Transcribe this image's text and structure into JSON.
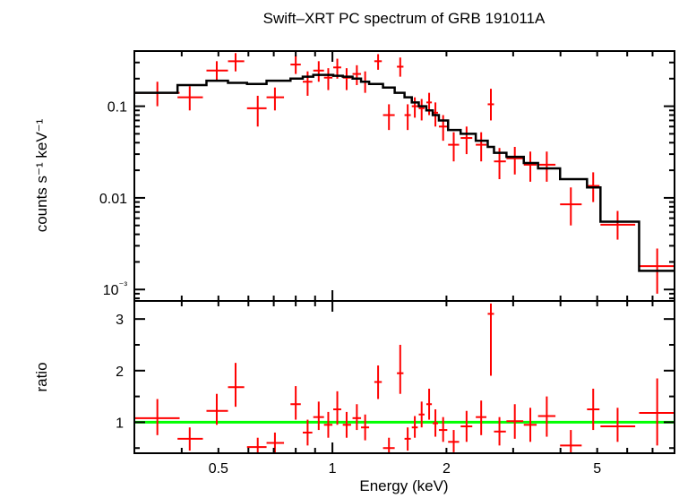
{
  "chart_data": [
    {
      "type": "scatter",
      "panel": "spectrum",
      "title": "Swift–XRT PC spectrum of GRB 191011A",
      "ylabel": "counts s⁻¹ keV⁻¹",
      "yscale": "log",
      "xscale": "log",
      "xlim": [
        0.3,
        8.0
      ],
      "ylim": [
        0.00075,
        0.4
      ],
      "yticks": [
        {
          "value": 0.1,
          "label": "0.1"
        },
        {
          "value": 0.01,
          "label": "0.01"
        },
        {
          "value": 0.001,
          "label": "10⁻³"
        }
      ],
      "colors": {
        "data": "#ff0000",
        "model": "#000000"
      },
      "series": [
        {
          "role": "data",
          "points": [
            {
              "x": 0.345,
              "xlo": 0.3,
              "xhi": 0.395,
              "y": 0.14,
              "ylo": 0.1,
              "yhi": 0.185
            },
            {
              "x": 0.42,
              "xlo": 0.39,
              "xhi": 0.455,
              "y": 0.125,
              "ylo": 0.09,
              "yhi": 0.165
            },
            {
              "x": 0.495,
              "xlo": 0.465,
              "xhi": 0.53,
              "y": 0.245,
              "ylo": 0.19,
              "yhi": 0.31
            },
            {
              "x": 0.555,
              "xlo": 0.53,
              "xhi": 0.585,
              "y": 0.31,
              "ylo": 0.24,
              "yhi": 0.38
            },
            {
              "x": 0.635,
              "xlo": 0.595,
              "xhi": 0.67,
              "y": 0.095,
              "ylo": 0.06,
              "yhi": 0.13
            },
            {
              "x": 0.705,
              "xlo": 0.67,
              "xhi": 0.745,
              "y": 0.125,
              "ylo": 0.09,
              "yhi": 0.16
            },
            {
              "x": 0.8,
              "xlo": 0.775,
              "xhi": 0.825,
              "y": 0.285,
              "ylo": 0.225,
              "yhi": 0.36
            },
            {
              "x": 0.86,
              "xlo": 0.835,
              "xhi": 0.885,
              "y": 0.185,
              "ylo": 0.13,
              "yhi": 0.24
            },
            {
              "x": 0.92,
              "xlo": 0.89,
              "xhi": 0.95,
              "y": 0.245,
              "ylo": 0.185,
              "yhi": 0.31
            },
            {
              "x": 0.975,
              "xlo": 0.95,
              "xhi": 1.0,
              "y": 0.205,
              "ylo": 0.15,
              "yhi": 0.26
            },
            {
              "x": 1.03,
              "xlo": 1.005,
              "xhi": 1.055,
              "y": 0.265,
              "ylo": 0.2,
              "yhi": 0.33
            },
            {
              "x": 1.09,
              "xlo": 1.065,
              "xhi": 1.12,
              "y": 0.205,
              "ylo": 0.15,
              "yhi": 0.26
            },
            {
              "x": 1.16,
              "xlo": 1.13,
              "xhi": 1.19,
              "y": 0.225,
              "ylo": 0.17,
              "yhi": 0.28
            },
            {
              "x": 1.22,
              "xlo": 1.19,
              "xhi": 1.25,
              "y": 0.185,
              "ylo": 0.14,
              "yhi": 0.24
            },
            {
              "x": 1.32,
              "xlo": 1.29,
              "xhi": 1.35,
              "y": 0.31,
              "ylo": 0.25,
              "yhi": 0.37
            },
            {
              "x": 1.41,
              "xlo": 1.36,
              "xhi": 1.46,
              "y": 0.08,
              "ylo": 0.055,
              "yhi": 0.105
            },
            {
              "x": 1.51,
              "xlo": 1.48,
              "xhi": 1.54,
              "y": 0.27,
              "ylo": 0.21,
              "yhi": 0.34
            },
            {
              "x": 1.58,
              "xlo": 1.55,
              "xhi": 1.61,
              "y": 0.08,
              "ylo": 0.055,
              "yhi": 0.105
            },
            {
              "x": 1.65,
              "xlo": 1.62,
              "xhi": 1.68,
              "y": 0.1,
              "ylo": 0.075,
              "yhi": 0.125
            },
            {
              "x": 1.72,
              "xlo": 1.69,
              "xhi": 1.75,
              "y": 0.095,
              "ylo": 0.07,
              "yhi": 0.12
            },
            {
              "x": 1.8,
              "xlo": 1.77,
              "xhi": 1.83,
              "y": 0.11,
              "ylo": 0.08,
              "yhi": 0.14
            },
            {
              "x": 1.87,
              "xlo": 1.84,
              "xhi": 1.9,
              "y": 0.085,
              "ylo": 0.06,
              "yhi": 0.11
            },
            {
              "x": 1.96,
              "xlo": 1.91,
              "xhi": 2.01,
              "y": 0.06,
              "ylo": 0.042,
              "yhi": 0.08
            },
            {
              "x": 2.09,
              "xlo": 2.02,
              "xhi": 2.16,
              "y": 0.038,
              "ylo": 0.025,
              "yhi": 0.052
            },
            {
              "x": 2.26,
              "xlo": 2.18,
              "xhi": 2.34,
              "y": 0.045,
              "ylo": 0.03,
              "yhi": 0.06
            },
            {
              "x": 2.47,
              "xlo": 2.39,
              "xhi": 2.55,
              "y": 0.038,
              "ylo": 0.025,
              "yhi": 0.052
            },
            {
              "x": 2.62,
              "xlo": 2.57,
              "xhi": 2.67,
              "y": 0.105,
              "ylo": 0.07,
              "yhi": 0.155
            },
            {
              "x": 2.76,
              "xlo": 2.67,
              "xhi": 2.87,
              "y": 0.025,
              "ylo": 0.016,
              "yhi": 0.035
            },
            {
              "x": 3.03,
              "xlo": 2.88,
              "xhi": 3.19,
              "y": 0.027,
              "ylo": 0.018,
              "yhi": 0.036
            },
            {
              "x": 3.33,
              "xlo": 3.2,
              "xhi": 3.46,
              "y": 0.023,
              "ylo": 0.015,
              "yhi": 0.032
            },
            {
              "x": 3.68,
              "xlo": 3.49,
              "xhi": 3.88,
              "y": 0.023,
              "ylo": 0.015,
              "yhi": 0.032
            },
            {
              "x": 4.26,
              "xlo": 3.99,
              "xhi": 4.55,
              "y": 0.0085,
              "ylo": 0.005,
              "yhi": 0.013
            },
            {
              "x": 4.88,
              "xlo": 4.7,
              "xhi": 5.07,
              "y": 0.0135,
              "ylo": 0.009,
              "yhi": 0.019
            },
            {
              "x": 5.66,
              "xlo": 5.1,
              "xhi": 6.3,
              "y": 0.0051,
              "ylo": 0.0035,
              "yhi": 0.0072
            },
            {
              "x": 7.2,
              "xlo": 6.45,
              "xhi": 8.0,
              "y": 0.0018,
              "ylo": 0.0009,
              "yhi": 0.0028
            }
          ]
        },
        {
          "role": "model",
          "steps": [
            [
              0.3,
              0.14
            ],
            [
              0.39,
              0.17
            ],
            [
              0.465,
              0.19
            ],
            [
              0.53,
              0.18
            ],
            [
              0.595,
              0.175
            ],
            [
              0.67,
              0.19
            ],
            [
              0.775,
              0.2
            ],
            [
              0.835,
              0.21
            ],
            [
              0.89,
              0.22
            ],
            [
              0.95,
              0.22
            ],
            [
              1.005,
              0.215
            ],
            [
              1.065,
              0.21
            ],
            [
              1.13,
              0.2
            ],
            [
              1.19,
              0.185
            ],
            [
              1.25,
              0.175
            ],
            [
              1.36,
              0.16
            ],
            [
              1.46,
              0.14
            ],
            [
              1.55,
              0.125
            ],
            [
              1.62,
              0.11
            ],
            [
              1.69,
              0.1
            ],
            [
              1.77,
              0.09
            ],
            [
              1.84,
              0.08
            ],
            [
              1.91,
              0.07
            ],
            [
              2.02,
              0.055
            ],
            [
              2.18,
              0.05
            ],
            [
              2.39,
              0.042
            ],
            [
              2.57,
              0.036
            ],
            [
              2.67,
              0.031
            ],
            [
              2.88,
              0.028
            ],
            [
              3.2,
              0.024
            ],
            [
              3.49,
              0.021
            ],
            [
              3.99,
              0.016
            ],
            [
              4.7,
              0.013
            ],
            [
              5.1,
              0.0055
            ],
            [
              6.45,
              0.0055
            ],
            [
              6.45,
              0.0016
            ],
            [
              8.0,
              0.0016
            ]
          ]
        }
      ]
    },
    {
      "type": "scatter",
      "panel": "ratio",
      "xlabel": "Energy (keV)",
      "ylabel": "ratio",
      "xscale": "log",
      "xlim": [
        0.3,
        8.0
      ],
      "ylim": [
        0.4,
        3.35
      ],
      "xticks": [
        {
          "value": 0.5,
          "label": "0.5"
        },
        {
          "value": 1,
          "label": "1"
        },
        {
          "value": 2,
          "label": "2"
        },
        {
          "value": 5,
          "label": "5"
        }
      ],
      "yticks": [
        {
          "value": 1,
          "label": "1"
        },
        {
          "value": 2,
          "label": "2"
        },
        {
          "value": 3,
          "label": "3"
        }
      ],
      "reference_line": 1.0,
      "colors": {
        "data": "#ff0000",
        "reference": "#00ff00"
      },
      "series": [
        {
          "role": "data",
          "points": [
            {
              "x": 0.345,
              "xlo": 0.3,
              "xhi": 0.395,
              "y": 1.08,
              "ylo": 0.75,
              "yhi": 1.45
            },
            {
              "x": 0.42,
              "xlo": 0.39,
              "xhi": 0.455,
              "y": 0.68,
              "ylo": 0.45,
              "yhi": 0.9
            },
            {
              "x": 0.495,
              "xlo": 0.465,
              "xhi": 0.53,
              "y": 1.22,
              "ylo": 0.95,
              "yhi": 1.55
            },
            {
              "x": 0.555,
              "xlo": 0.53,
              "xhi": 0.585,
              "y": 1.68,
              "ylo": 1.3,
              "yhi": 2.15
            },
            {
              "x": 0.635,
              "xlo": 0.595,
              "xhi": 0.67,
              "y": 0.52,
              "ylo": 0.4,
              "yhi": 0.7
            },
            {
              "x": 0.705,
              "xlo": 0.67,
              "xhi": 0.745,
              "y": 0.6,
              "ylo": 0.4,
              "yhi": 0.8
            },
            {
              "x": 0.8,
              "xlo": 0.775,
              "xhi": 0.825,
              "y": 1.35,
              "ylo": 1.05,
              "yhi": 1.7
            },
            {
              "x": 0.86,
              "xlo": 0.835,
              "xhi": 0.885,
              "y": 0.8,
              "ylo": 0.55,
              "yhi": 1.05
            },
            {
              "x": 0.92,
              "xlo": 0.89,
              "xhi": 0.95,
              "y": 1.1,
              "ylo": 0.85,
              "yhi": 1.4
            },
            {
              "x": 0.975,
              "xlo": 0.95,
              "xhi": 1.0,
              "y": 0.95,
              "ylo": 0.7,
              "yhi": 1.2
            },
            {
              "x": 1.03,
              "xlo": 1.005,
              "xhi": 1.055,
              "y": 1.25,
              "ylo": 0.95,
              "yhi": 1.6
            },
            {
              "x": 1.09,
              "xlo": 1.065,
              "xhi": 1.12,
              "y": 0.95,
              "ylo": 0.7,
              "yhi": 1.2
            },
            {
              "x": 1.16,
              "xlo": 1.13,
              "xhi": 1.19,
              "y": 1.08,
              "ylo": 0.85,
              "yhi": 1.35
            },
            {
              "x": 1.22,
              "xlo": 1.19,
              "xhi": 1.25,
              "y": 0.9,
              "ylo": 0.65,
              "yhi": 1.15
            },
            {
              "x": 1.32,
              "xlo": 1.29,
              "xhi": 1.35,
              "y": 1.78,
              "ylo": 1.45,
              "yhi": 2.1
            },
            {
              "x": 1.41,
              "xlo": 1.36,
              "xhi": 1.46,
              "y": 0.5,
              "ylo": 0.4,
              "yhi": 0.7
            },
            {
              "x": 1.51,
              "xlo": 1.48,
              "xhi": 1.54,
              "y": 1.95,
              "ylo": 1.55,
              "yhi": 2.5
            },
            {
              "x": 1.58,
              "xlo": 1.55,
              "xhi": 1.61,
              "y": 0.68,
              "ylo": 0.45,
              "yhi": 0.9
            },
            {
              "x": 1.65,
              "xlo": 1.62,
              "xhi": 1.68,
              "y": 0.9,
              "ylo": 0.7,
              "yhi": 1.12
            },
            {
              "x": 1.72,
              "xlo": 1.69,
              "xhi": 1.75,
              "y": 1.15,
              "ylo": 0.9,
              "yhi": 1.4
            },
            {
              "x": 1.8,
              "xlo": 1.77,
              "xhi": 1.83,
              "y": 1.35,
              "ylo": 1.05,
              "yhi": 1.65
            },
            {
              "x": 1.87,
              "xlo": 1.84,
              "xhi": 1.9,
              "y": 0.98,
              "ylo": 0.72,
              "yhi": 1.25
            },
            {
              "x": 1.96,
              "xlo": 1.91,
              "xhi": 2.01,
              "y": 0.85,
              "ylo": 0.62,
              "yhi": 1.1
            },
            {
              "x": 2.09,
              "xlo": 2.02,
              "xhi": 2.16,
              "y": 0.62,
              "ylo": 0.42,
              "yhi": 0.85
            },
            {
              "x": 2.26,
              "xlo": 2.18,
              "xhi": 2.34,
              "y": 0.92,
              "ylo": 0.62,
              "yhi": 1.22
            },
            {
              "x": 2.47,
              "xlo": 2.39,
              "xhi": 2.55,
              "y": 1.1,
              "ylo": 0.75,
              "yhi": 1.42
            },
            {
              "x": 2.62,
              "xlo": 2.57,
              "xhi": 2.67,
              "y": 3.1,
              "ylo": 1.9,
              "yhi": 3.3
            },
            {
              "x": 2.76,
              "xlo": 2.67,
              "xhi": 2.87,
              "y": 0.82,
              "ylo": 0.55,
              "yhi": 1.1
            },
            {
              "x": 3.03,
              "xlo": 2.88,
              "xhi": 3.19,
              "y": 1.02,
              "ylo": 0.68,
              "yhi": 1.35
            },
            {
              "x": 3.33,
              "xlo": 3.2,
              "xhi": 3.46,
              "y": 0.95,
              "ylo": 0.62,
              "yhi": 1.28
            },
            {
              "x": 3.68,
              "xlo": 3.49,
              "xhi": 3.88,
              "y": 1.12,
              "ylo": 0.72,
              "yhi": 1.5
            },
            {
              "x": 4.26,
              "xlo": 3.99,
              "xhi": 4.55,
              "y": 0.55,
              "ylo": 0.4,
              "yhi": 0.85
            },
            {
              "x": 4.88,
              "xlo": 4.7,
              "xhi": 5.07,
              "y": 1.25,
              "ylo": 0.85,
              "yhi": 1.65
            },
            {
              "x": 5.66,
              "xlo": 5.1,
              "xhi": 6.3,
              "y": 0.92,
              "ylo": 0.62,
              "yhi": 1.28
            },
            {
              "x": 7.2,
              "xlo": 6.45,
              "xhi": 8.0,
              "y": 1.18,
              "ylo": 0.55,
              "yhi": 1.85
            }
          ]
        }
      ]
    }
  ]
}
